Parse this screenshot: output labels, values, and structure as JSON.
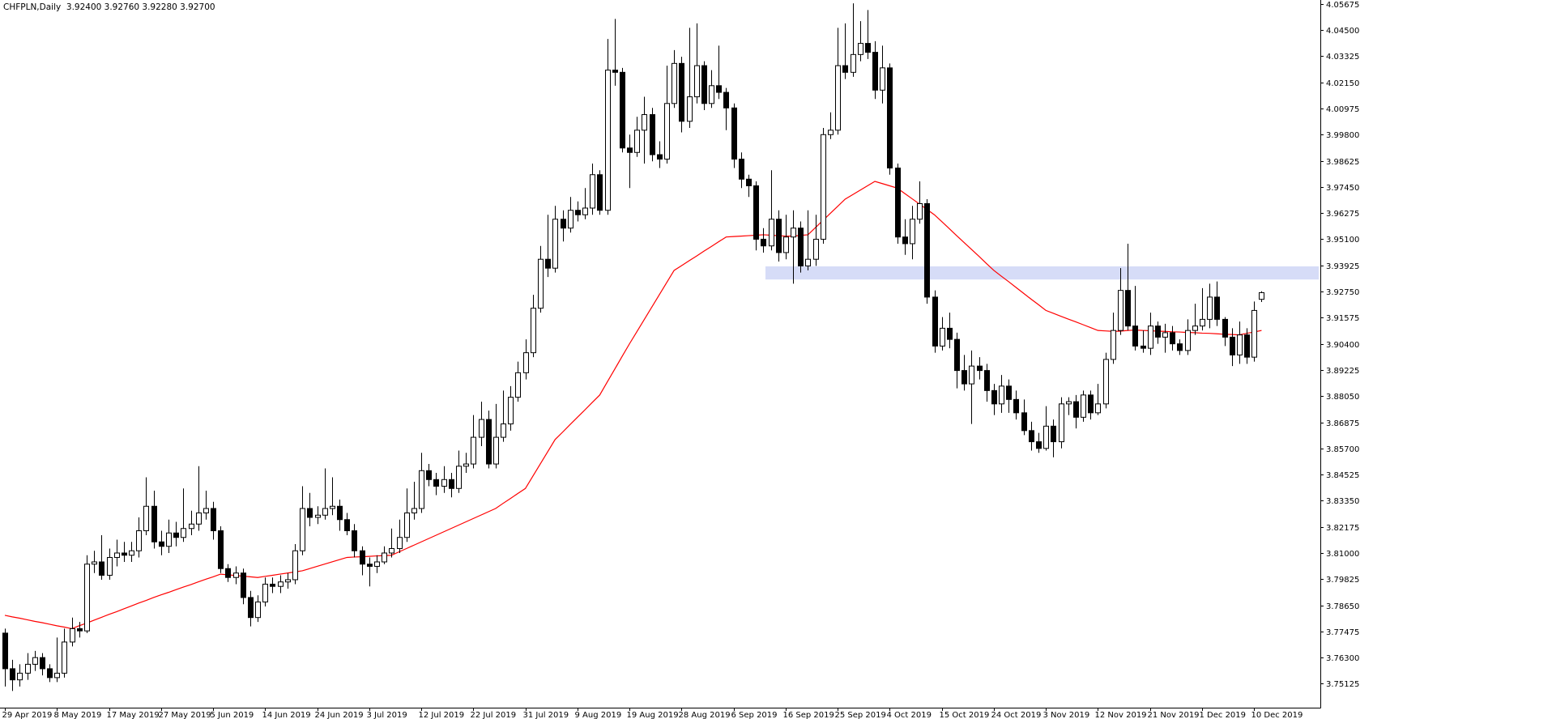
{
  "chart_data": {
    "type": "candlestick",
    "title": "CHFPLN,Daily  3.92400 3.92760 3.92280 3.92700",
    "categories": [
      "29 Apr 2019",
      null,
      null,
      null,
      null,
      null,
      null,
      "8 May 2019",
      null,
      null,
      null,
      null,
      null,
      null,
      "17 May 2019",
      null,
      null,
      null,
      null,
      null,
      null,
      "27 May 2019",
      null,
      null,
      null,
      null,
      null,
      null,
      "5 Jun 2019",
      null,
      null,
      null,
      null,
      null,
      null,
      "14 Jun 2019",
      null,
      null,
      null,
      null,
      null,
      null,
      "24 Jun 2019",
      null,
      null,
      null,
      null,
      null,
      null,
      "3 Jul 2019",
      null,
      null,
      null,
      null,
      null,
      null,
      "12 Jul 2019",
      null,
      null,
      null,
      null,
      null,
      null,
      "22 Jul 2019",
      null,
      null,
      null,
      null,
      null,
      null,
      "31 Jul 2019",
      null,
      null,
      null,
      null,
      null,
      null,
      "9 Aug 2019",
      null,
      null,
      null,
      null,
      null,
      null,
      "19 Aug 2019",
      null,
      null,
      null,
      null,
      null,
      null,
      "28 Aug 2019",
      null,
      null,
      null,
      null,
      null,
      null,
      "6 Sep 2019",
      null,
      null,
      null,
      null,
      null,
      null,
      "16 Sep 2019",
      null,
      null,
      null,
      null,
      null,
      null,
      "25 Sep 2019",
      null,
      null,
      null,
      null,
      null,
      null,
      "4 Oct 2019",
      null,
      null,
      null,
      null,
      null,
      null,
      "15 Oct 2019",
      null,
      null,
      null,
      null,
      null,
      null,
      "24 Oct 2019",
      null,
      null,
      null,
      null,
      null,
      null,
      "3 Nov 2019",
      null,
      null,
      null,
      null,
      null,
      null,
      "12 Nov 2019",
      null,
      null,
      null,
      null,
      null,
      null,
      "21 Nov 2019",
      null,
      null,
      null,
      null,
      null,
      null,
      "1 Dec 2019",
      null,
      null,
      null,
      null,
      null,
      null,
      "10 Dec 2019",
      null
    ],
    "open": [
      3.774,
      3.758,
      3.753,
      3.756,
      3.76,
      3.763,
      3.758,
      3.754,
      3.756,
      3.77,
      3.776,
      3.775,
      3.805,
      3.806,
      3.8,
      3.808,
      3.81,
      3.809,
      3.811,
      3.82,
      3.831,
      3.815,
      3.813,
      3.819,
      3.817,
      3.821,
      3.823,
      3.828,
      3.83,
      3.82,
      3.803,
      3.799,
      3.801,
      3.79,
      3.781,
      3.788,
      3.796,
      3.795,
      3.797,
      3.798,
      3.811,
      3.83,
      3.826,
      3.827,
      3.83,
      3.831,
      3.825,
      3.82,
      3.811,
      3.805,
      3.804,
      3.806,
      3.81,
      3.812,
      3.817,
      3.828,
      3.83,
      3.847,
      3.843,
      3.84,
      3.843,
      3.839,
      3.849,
      3.85,
      3.862,
      3.87,
      3.85,
      3.862,
      3.868,
      3.88,
      3.891,
      3.9,
      3.92,
      3.942,
      3.938,
      3.96,
      3.956,
      3.964,
      3.962,
      3.965,
      3.98,
      3.964,
      4.027,
      4.026,
      3.992,
      3.99,
      4.0,
      4.007,
      3.989,
      3.987,
      4.012,
      4.03,
      4.004,
      4.015,
      4.029,
      4.012,
      4.02,
      4.017,
      4.01,
      3.987,
      3.978,
      3.975,
      3.951,
      3.948,
      3.96,
      3.945,
      3.952,
      3.956,
      3.939,
      3.942,
      3.951,
      3.998,
      4.0,
      4.029,
      4.026,
      4.034,
      4.039,
      4.035,
      4.018,
      4.028,
      3.983,
      3.952,
      3.949,
      3.96,
      3.967,
      3.925,
      3.903,
      3.911,
      3.906,
      3.892,
      3.886,
      3.894,
      3.892,
      3.883,
      3.877,
      3.885,
      3.879,
      3.873,
      3.865,
      3.86,
      3.857,
      3.867,
      3.86,
      3.877,
      3.878,
      3.871,
      3.881,
      3.873,
      3.877,
      3.897,
      3.91,
      3.928,
      3.912,
      3.903,
      3.902,
      3.912,
      3.907,
      3.909,
      3.904,
      3.901,
      3.91,
      3.912,
      3.915,
      3.925,
      3.915,
      3.907,
      3.899,
      3.908,
      3.898,
      3.924
    ],
    "high": [
      3.776,
      3.762,
      3.76,
      3.765,
      3.766,
      3.765,
      3.76,
      3.772,
      3.776,
      3.781,
      3.779,
      3.809,
      3.811,
      3.818,
      3.812,
      3.816,
      3.815,
      3.815,
      3.826,
      3.844,
      3.838,
      3.82,
      3.825,
      3.824,
      3.839,
      3.829,
      3.849,
      3.838,
      3.833,
      3.822,
      3.805,
      3.804,
      3.803,
      3.793,
      3.791,
      3.799,
      3.799,
      3.8,
      3.801,
      3.814,
      3.84,
      3.837,
      3.831,
      3.848,
      3.844,
      3.834,
      3.828,
      3.823,
      3.813,
      3.808,
      3.809,
      3.813,
      3.821,
      3.825,
      3.839,
      3.842,
      3.855,
      3.85,
      3.846,
      3.849,
      3.846,
      3.856,
      3.855,
      3.872,
      3.878,
      3.874,
      3.877,
      3.883,
      3.885,
      3.896,
      3.906,
      3.926,
      3.948,
      3.962,
      3.966,
      3.964,
      3.97,
      3.968,
      3.974,
      3.985,
      3.982,
      4.041,
      4.05,
      4.028,
      3.998,
      4.006,
      4.015,
      4.01,
      3.995,
      4.029,
      4.036,
      4.033,
      4.046,
      4.048,
      4.031,
      4.027,
      4.038,
      4.019,
      4.012,
      3.99,
      3.98,
      3.977,
      3.956,
      3.982,
      3.964,
      3.962,
      3.964,
      3.959,
      3.964,
      3.962,
      4.001,
      4.008,
      4.046,
      4.048,
      4.057,
      4.049,
      4.054,
      4.04,
      4.038,
      4.03,
      3.985,
      3.96,
      3.966,
      3.977,
      3.969,
      3.928,
      3.916,
      3.918,
      3.909,
      3.899,
      3.901,
      3.898,
      3.895,
      3.886,
      3.89,
      3.888,
      3.883,
      3.879,
      3.869,
      3.864,
      3.876,
      3.87,
      3.88,
      3.88,
      3.881,
      3.883,
      3.883,
      3.886,
      3.9,
      3.918,
      3.938,
      3.949,
      3.93,
      3.91,
      3.918,
      3.914,
      3.913,
      3.912,
      3.906,
      3.915,
      3.922,
      3.929,
      3.931,
      3.932,
      3.916,
      3.911,
      3.914,
      3.911,
      3.923,
      3.9276
    ],
    "low": [
      3.75,
      3.748,
      3.75,
      3.753,
      3.757,
      3.755,
      3.752,
      3.752,
      3.754,
      3.768,
      3.772,
      3.774,
      3.801,
      3.798,
      3.798,
      3.804,
      3.806,
      3.806,
      3.808,
      3.818,
      3.812,
      3.809,
      3.81,
      3.813,
      3.815,
      3.818,
      3.82,
      3.825,
      3.816,
      3.801,
      3.797,
      3.796,
      3.787,
      3.777,
      3.779,
      3.786,
      3.792,
      3.792,
      3.794,
      3.796,
      3.809,
      3.822,
      3.823,
      3.825,
      3.827,
      3.82,
      3.818,
      3.808,
      3.8,
      3.795,
      3.801,
      3.805,
      3.808,
      3.81,
      3.815,
      3.825,
      3.828,
      3.84,
      3.836,
      3.837,
      3.835,
      3.837,
      3.846,
      3.848,
      3.858,
      3.848,
      3.848,
      3.86,
      3.865,
      3.878,
      3.888,
      3.898,
      3.918,
      3.934,
      3.936,
      3.95,
      3.954,
      3.959,
      3.96,
      3.962,
      3.962,
      3.962,
      4.02,
      3.99,
      3.974,
      3.988,
      3.985,
      3.986,
      3.983,
      3.985,
      4.01,
      3.999,
      4.001,
      4.012,
      4.009,
      4.01,
      4.014,
      4.0,
      3.983,
      3.974,
      3.97,
      3.946,
      3.945,
      3.946,
      3.941,
      3.942,
      3.931,
      3.936,
      3.937,
      3.939,
      3.949,
      3.996,
      3.998,
      4.023,
      4.024,
      4.031,
      4.032,
      4.014,
      4.012,
      3.98,
      3.949,
      3.944,
      3.942,
      3.958,
      3.922,
      3.9,
      3.901,
      3.902,
      3.884,
      3.883,
      3.868,
      3.888,
      3.878,
      3.872,
      3.873,
      3.873,
      3.87,
      3.863,
      3.856,
      3.855,
      3.856,
      3.853,
      3.857,
      3.872,
      3.866,
      3.869,
      3.87,
      3.872,
      3.875,
      3.895,
      3.908,
      3.91,
      3.901,
      3.9,
      3.899,
      3.904,
      3.9,
      3.901,
      3.899,
      3.899,
      3.908,
      3.91,
      3.911,
      3.912,
      3.903,
      3.894,
      3.895,
      3.895,
      3.896,
      3.9228
    ],
    "close": [
      3.758,
      3.753,
      3.756,
      3.76,
      3.763,
      3.758,
      3.754,
      3.756,
      3.77,
      3.776,
      3.775,
      3.805,
      3.806,
      3.8,
      3.808,
      3.81,
      3.809,
      3.811,
      3.82,
      3.831,
      3.815,
      3.813,
      3.819,
      3.817,
      3.821,
      3.823,
      3.828,
      3.83,
      3.82,
      3.803,
      3.799,
      3.801,
      3.79,
      3.781,
      3.788,
      3.796,
      3.795,
      3.797,
      3.798,
      3.811,
      3.83,
      3.826,
      3.827,
      3.83,
      3.831,
      3.825,
      3.82,
      3.811,
      3.805,
      3.804,
      3.806,
      3.81,
      3.812,
      3.817,
      3.828,
      3.83,
      3.847,
      3.843,
      3.84,
      3.843,
      3.839,
      3.849,
      3.85,
      3.862,
      3.87,
      3.85,
      3.862,
      3.868,
      3.88,
      3.891,
      3.9,
      3.92,
      3.942,
      3.938,
      3.96,
      3.956,
      3.964,
      3.962,
      3.965,
      3.98,
      3.964,
      4.027,
      4.026,
      3.992,
      3.99,
      4.0,
      4.007,
      3.989,
      3.987,
      4.012,
      4.03,
      4.004,
      4.015,
      4.029,
      4.012,
      4.02,
      4.017,
      4.01,
      3.987,
      3.978,
      3.975,
      3.951,
      3.948,
      3.96,
      3.945,
      3.952,
      3.956,
      3.939,
      3.942,
      3.951,
      3.998,
      4.0,
      4.029,
      4.026,
      4.034,
      4.039,
      4.035,
      4.018,
      4.028,
      3.983,
      3.952,
      3.949,
      3.96,
      3.967,
      3.925,
      3.903,
      3.911,
      3.906,
      3.892,
      3.886,
      3.894,
      3.892,
      3.883,
      3.877,
      3.885,
      3.879,
      3.873,
      3.865,
      3.86,
      3.857,
      3.867,
      3.86,
      3.877,
      3.878,
      3.871,
      3.881,
      3.873,
      3.877,
      3.897,
      3.91,
      3.928,
      3.912,
      3.903,
      3.902,
      3.912,
      3.907,
      3.909,
      3.904,
      3.901,
      3.91,
      3.912,
      3.915,
      3.925,
      3.915,
      3.907,
      3.899,
      3.908,
      3.898,
      3.919,
      3.927
    ],
    "up_color": "#ffffff",
    "down_color": "#000000",
    "ma": {
      "color": "#ff0000",
      "values": [
        3.782,
        3.7813,
        3.7807,
        3.78,
        3.7793,
        3.7787,
        3.778,
        3.7773,
        3.7767,
        3.776,
        3.7773,
        3.7785,
        3.7798,
        3.7811,
        3.7824,
        3.7836,
        3.7849,
        3.7862,
        3.7875,
        3.7887,
        3.79,
        3.7912,
        3.7923,
        3.7935,
        3.7947,
        3.7958,
        3.797,
        3.7982,
        3.7993,
        3.8005,
        3.8002,
        3.7999,
        3.7996,
        3.7993,
        3.799,
        3.7995,
        3.8,
        3.8005,
        3.801,
        3.8015,
        3.802,
        3.803,
        3.804,
        3.805,
        3.806,
        3.807,
        3.808,
        3.8082,
        3.8083,
        3.8085,
        3.8087,
        3.8088,
        3.809,
        3.8105,
        3.812,
        3.8135,
        3.815,
        3.8165,
        3.818,
        3.8195,
        3.821,
        3.8225,
        3.824,
        3.8255,
        3.827,
        3.8285,
        3.83,
        3.8323,
        3.8345,
        3.8368,
        3.839,
        3.8445,
        3.85,
        3.8555,
        3.861,
        3.8643,
        3.8677,
        3.871,
        3.8743,
        3.8777,
        3.881,
        3.8868,
        3.8925,
        3.8983,
        3.904,
        3.9095,
        3.915,
        3.9205,
        3.926,
        3.9315,
        3.937,
        3.9391,
        3.9413,
        3.9434,
        3.9456,
        3.9477,
        3.9499,
        3.952,
        3.9522,
        3.9524,
        3.9526,
        3.9528,
        3.953,
        3.9528,
        3.9526,
        3.9524,
        3.9524,
        3.9527,
        3.953,
        3.9562,
        3.9594,
        3.9626,
        3.9658,
        3.969,
        3.971,
        3.973,
        3.975,
        3.977,
        3.976,
        3.975,
        3.974,
        3.9716,
        3.9692,
        3.9668,
        3.9644,
        3.962,
        3.9589,
        3.9558,
        3.9526,
        3.9495,
        3.9464,
        3.9433,
        3.9401,
        3.937,
        3.9344,
        3.9319,
        3.9293,
        3.9267,
        3.9241,
        3.9216,
        3.919,
        3.9177,
        3.9164,
        3.9151,
        3.9139,
        3.9126,
        3.9113,
        3.91,
        3.9098,
        3.9096,
        3.9097,
        3.91,
        3.9102,
        3.91,
        3.9099,
        3.9097,
        3.9096,
        3.9094,
        3.9093,
        3.9091,
        3.909,
        3.9088,
        3.9087,
        3.9085,
        3.9083,
        3.9082,
        3.908,
        3.9087,
        3.9093,
        3.91
      ]
    },
    "zone": {
      "top": 3.9388,
      "bottom": 3.9329,
      "color": "#d6dcf7"
    },
    "ylim": [
      3.7405,
      4.0585
    ],
    "yticks": [
      4.05675,
      {
        "value": 4.045,
        "label": "4.04500"
      },
      4.03325,
      {
        "value": 4.0215,
        "label": "4.02150"
      },
      4.00975,
      {
        "value": 3.998,
        "label": "3.99800"
      },
      3.98625,
      {
        "value": 3.9745,
        "label": "3.97450"
      },
      3.96275,
      {
        "value": 3.951,
        "label": "3.95100"
      },
      3.93925,
      {
        "value": 3.9275,
        "label": "3.92750"
      },
      3.91575,
      {
        "value": 3.904,
        "label": "3.90400"
      },
      3.89225,
      {
        "value": 3.8805,
        "label": "3.88050"
      },
      3.86875,
      {
        "value": 3.857,
        "label": "3.85700"
      },
      3.84525,
      {
        "value": 3.8335,
        "label": "3.83350"
      },
      3.82175,
      {
        "value": 3.81,
        "label": "3.81000"
      },
      3.79825,
      {
        "value": 3.7865,
        "label": "3.78650"
      },
      3.77475,
      {
        "value": 3.763,
        "label": "3.76300"
      },
      3.75125
    ]
  }
}
